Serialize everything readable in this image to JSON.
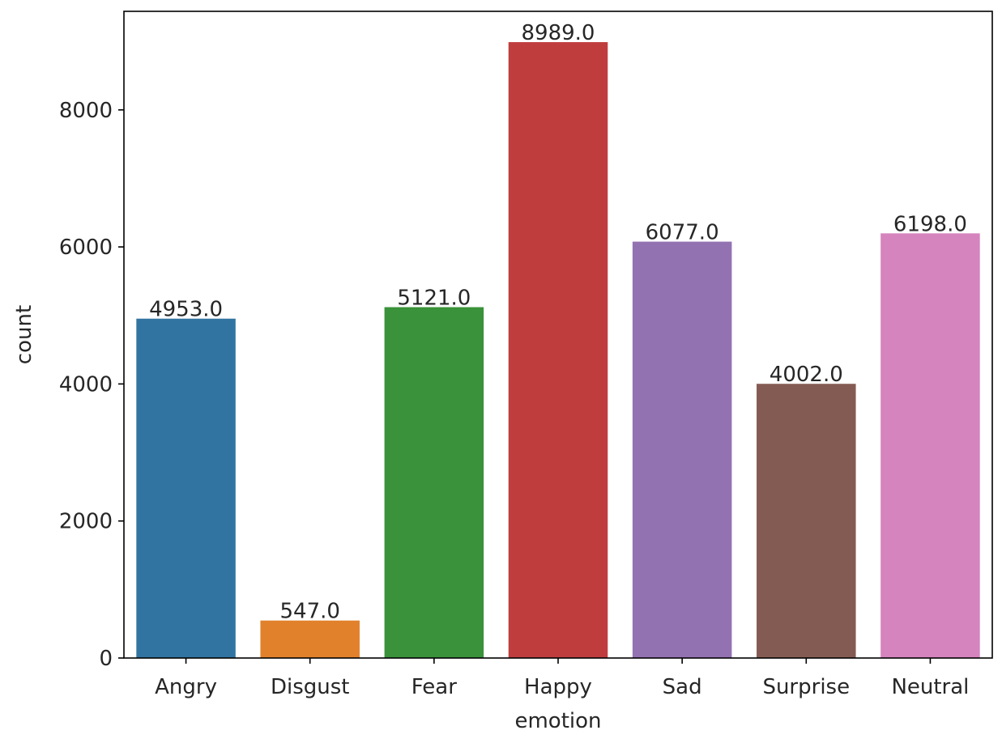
{
  "chart_data": {
    "type": "bar",
    "title": "",
    "xlabel": "emotion",
    "ylabel": "count",
    "categories": [
      "Angry",
      "Disgust",
      "Fear",
      "Happy",
      "Sad",
      "Surprise",
      "Neutral"
    ],
    "values": [
      4953,
      547,
      5121,
      8989,
      6077,
      4002,
      6198
    ],
    "data_labels": [
      "4953.0",
      "547.0",
      "5121.0",
      "8989.0",
      "6077.0",
      "4002.0",
      "6198.0"
    ],
    "colors": [
      "#3274a1",
      "#e1812c",
      "#3a923a",
      "#c03d3e",
      "#9372b2",
      "#845b53",
      "#d684bd"
    ],
    "yticks": [
      0,
      2000,
      4000,
      6000,
      8000
    ],
    "ytick_labels": [
      "0",
      "2000",
      "4000",
      "6000",
      "8000"
    ],
    "ylim": [
      0,
      9438.45
    ],
    "grid": false,
    "legend": "none"
  }
}
